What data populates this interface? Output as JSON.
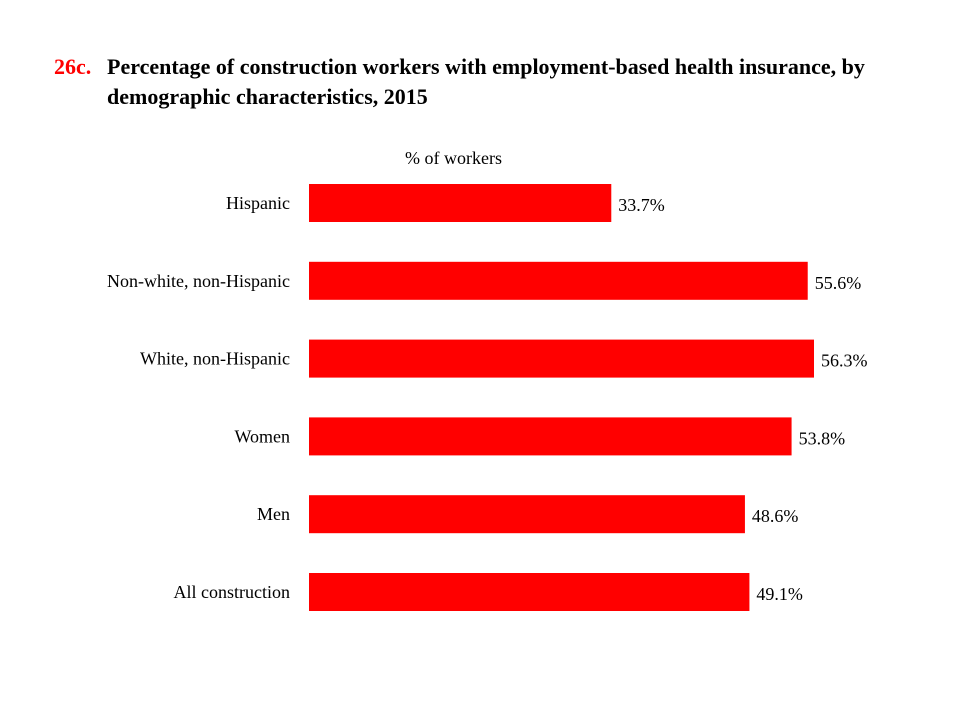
{
  "title": {
    "number": "26c.",
    "text": "Percentage of construction workers with employment-based health insurance, by demographic characteristics, 2015"
  },
  "chart_data": {
    "type": "bar",
    "orientation": "horizontal",
    "title": "26c. Percentage of construction workers with employment-based health insurance, by demographic characteristics, 2015",
    "ylabel": "% of workers",
    "categories": [
      "Hispanic",
      "Non-white, non-Hispanic",
      "White, non-Hispanic",
      "Women",
      "Men",
      "All construction"
    ],
    "values": [
      33.7,
      55.6,
      56.3,
      53.8,
      48.6,
      49.1
    ],
    "value_labels": [
      "33.7%",
      "55.6%",
      "56.3%",
      "53.8%",
      "48.6%",
      "49.1%"
    ],
    "xlim": [
      0,
      60
    ],
    "grid": false,
    "legend": "none",
    "bar_color": "#ff0000"
  }
}
